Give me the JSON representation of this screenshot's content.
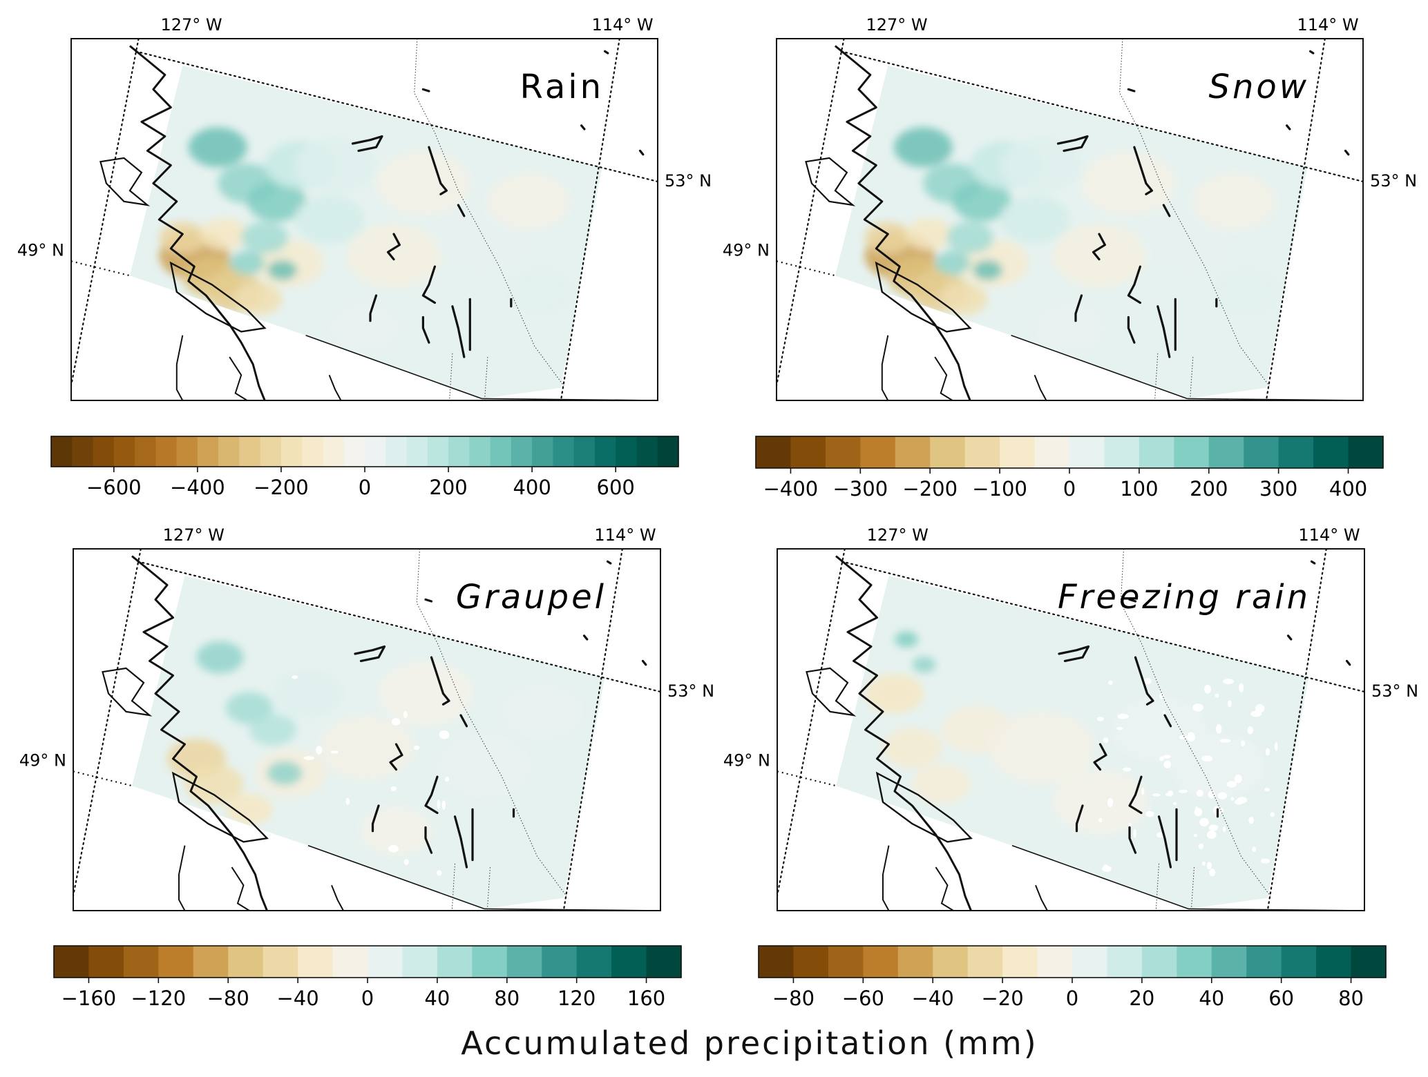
{
  "figure": {
    "xlabel": "Accumulated precipitation (mm)"
  },
  "panels": [
    {
      "id": "rain",
      "title": "Rain",
      "italic": false,
      "lon_labels": [
        "127° W",
        "114° W"
      ],
      "lat_labels": [
        "53° N",
        "49° N"
      ],
      "colorbar": {
        "min": -750,
        "max": 750,
        "levels": 30,
        "ticks": [
          -600,
          -400,
          -200,
          0,
          200,
          400,
          600
        ],
        "tick_labels": [
          "−600",
          "−400",
          "−200",
          "0",
          "200",
          "400",
          "600"
        ]
      },
      "anomaly_pattern": "strong-coastal"
    },
    {
      "id": "snow",
      "title": "Snow",
      "italic": true,
      "lon_labels": [
        "127° W",
        "114° W"
      ],
      "lat_labels": [
        "53° N",
        "49° N"
      ],
      "colorbar": {
        "min": -450,
        "max": 450,
        "levels": 18,
        "ticks": [
          -400,
          -300,
          -200,
          -100,
          0,
          100,
          200,
          300,
          400
        ],
        "tick_labels": [
          "−400",
          "−300",
          "−200",
          "−100",
          "0",
          "100",
          "200",
          "300",
          "400"
        ]
      },
      "anomaly_pattern": "strong-coastal"
    },
    {
      "id": "graupel",
      "title": "Graupel",
      "italic": true,
      "lon_labels": [
        "127° W",
        "114° W"
      ],
      "lat_labels": [
        "53° N",
        "49° N"
      ],
      "colorbar": {
        "min": -180,
        "max": 180,
        "levels": 18,
        "ticks": [
          -160,
          -120,
          -80,
          -40,
          0,
          40,
          80,
          120,
          160
        ],
        "tick_labels": [
          "−160",
          "−120",
          "−80",
          "−40",
          "0",
          "40",
          "80",
          "120",
          "160"
        ]
      },
      "anomaly_pattern": "moderate-coastal"
    },
    {
      "id": "freezing-rain",
      "title": "Freezing rain",
      "italic": true,
      "lon_labels": [
        "127° W",
        "114° W"
      ],
      "lat_labels": [
        "53° N",
        "49° N"
      ],
      "colorbar": {
        "min": -90,
        "max": 90,
        "levels": 18,
        "ticks": [
          -80,
          -60,
          -40,
          -20,
          0,
          20,
          40,
          60,
          80
        ],
        "tick_labels": [
          "−80",
          "−60",
          "−40",
          "−20",
          "0",
          "20",
          "40",
          "60",
          "80"
        ]
      },
      "anomaly_pattern": "weak-patchy"
    }
  ],
  "colormap": {
    "name": "BrBG",
    "stops": [
      "#543005",
      "#8c510a",
      "#bf812d",
      "#dfc27d",
      "#f6e8c3",
      "#f5f5f5",
      "#c7eae5",
      "#80cdc1",
      "#35978f",
      "#01665e",
      "#003c30"
    ]
  }
}
